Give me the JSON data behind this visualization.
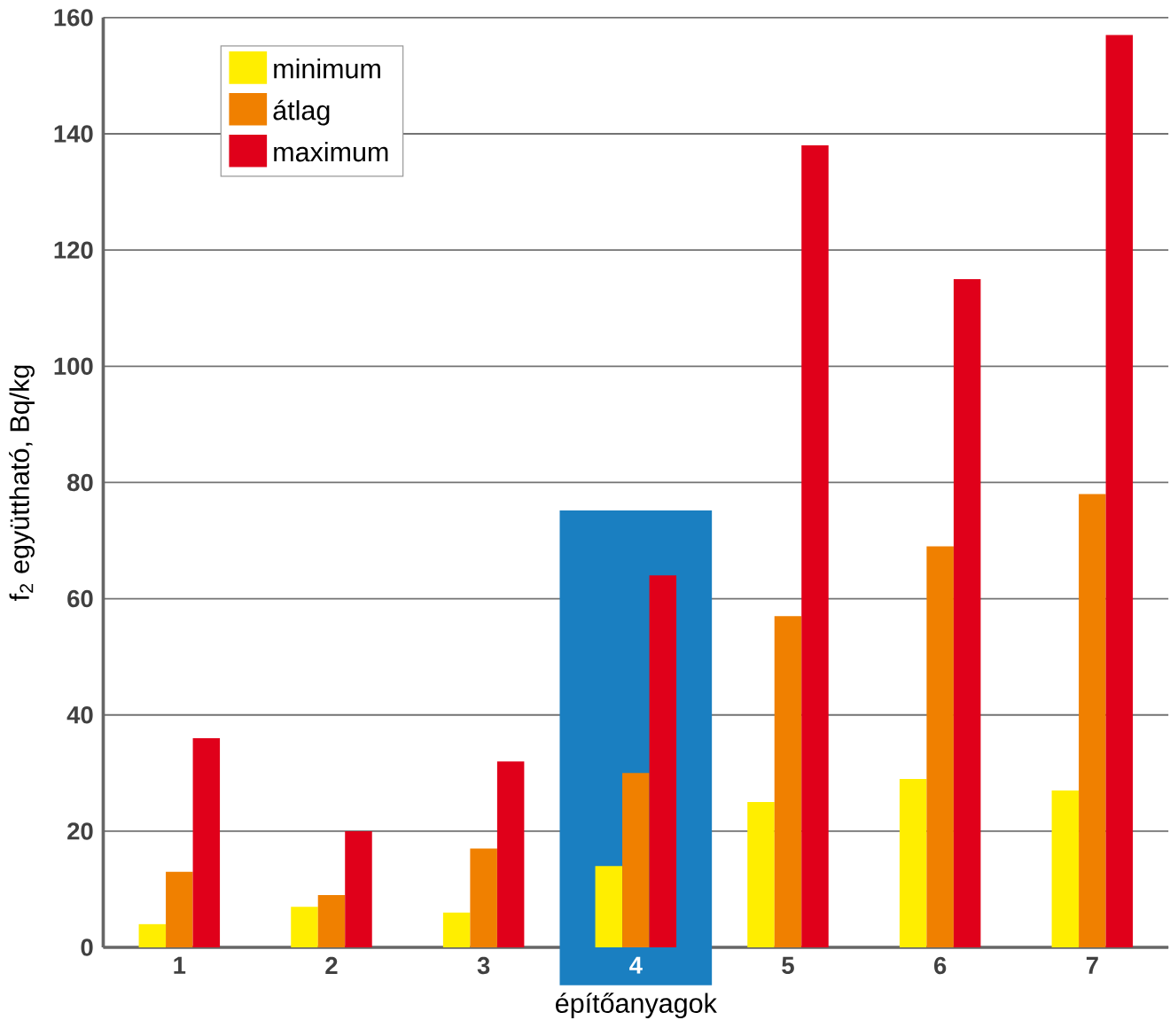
{
  "chart_data": {
    "type": "bar",
    "xlabel": "építőanyagok",
    "ylabel": "f$_{2}$ együttható, Bq/kg",
    "categories": [
      "1",
      "2",
      "3",
      "4",
      "5",
      "6",
      "7"
    ],
    "series": [
      {
        "name": "minimum",
        "color": "#ffee00",
        "values": [
          4,
          7,
          6,
          14,
          25,
          29,
          27
        ]
      },
      {
        "name": "átlag",
        "color": "#f08000",
        "values": [
          13,
          9,
          17,
          30,
          57,
          69,
          78
        ]
      },
      {
        "name": "maximum",
        "color": "#e0001a",
        "values": [
          36,
          20,
          32,
          64,
          138,
          115,
          157
        ]
      }
    ],
    "ylim": [
      0,
      160
    ],
    "yticks": [
      0,
      20,
      40,
      60,
      80,
      100,
      120,
      140,
      160
    ],
    "grid": "y",
    "legend": "top left",
    "bands": [
      {
        "axis": "x",
        "from": "4",
        "to": "4",
        "color": "#1a7fc1"
      }
    ]
  }
}
